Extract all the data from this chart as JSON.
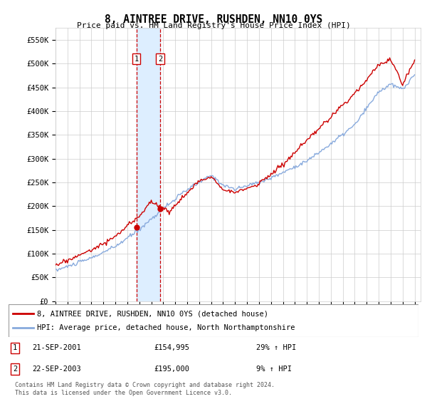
{
  "title": "8, AINTREE DRIVE, RUSHDEN, NN10 0YS",
  "subtitle": "Price paid vs. HM Land Registry's House Price Index (HPI)",
  "ylim": [
    0,
    575000
  ],
  "yticks": [
    0,
    50000,
    100000,
    150000,
    200000,
    250000,
    300000,
    350000,
    400000,
    450000,
    500000,
    550000
  ],
  "ytick_labels": [
    "£0",
    "£50K",
    "£100K",
    "£150K",
    "£200K",
    "£250K",
    "£300K",
    "£350K",
    "£400K",
    "£450K",
    "£500K",
    "£550K"
  ],
  "sale1_date": "21-SEP-2001",
  "sale1_price": 154995,
  "sale1_price_str": "£154,995",
  "sale1_pct": "29% ↑ HPI",
  "sale2_date": "22-SEP-2003",
  "sale2_price": 195000,
  "sale2_price_str": "£195,000",
  "sale2_pct": "9% ↑ HPI",
  "legend_line1": "8, AINTREE DRIVE, RUSHDEN, NN10 0YS (detached house)",
  "legend_line2": "HPI: Average price, detached house, North Northamptonshire",
  "footer": "Contains HM Land Registry data © Crown copyright and database right 2024.\nThis data is licensed under the Open Government Licence v3.0.",
  "red_color": "#cc0000",
  "blue_color": "#88aadd",
  "shade_color": "#ddeeff",
  "background_color": "#ffffff",
  "grid_color": "#cccccc",
  "sale1_x": 2001.75,
  "sale2_x": 2003.75
}
